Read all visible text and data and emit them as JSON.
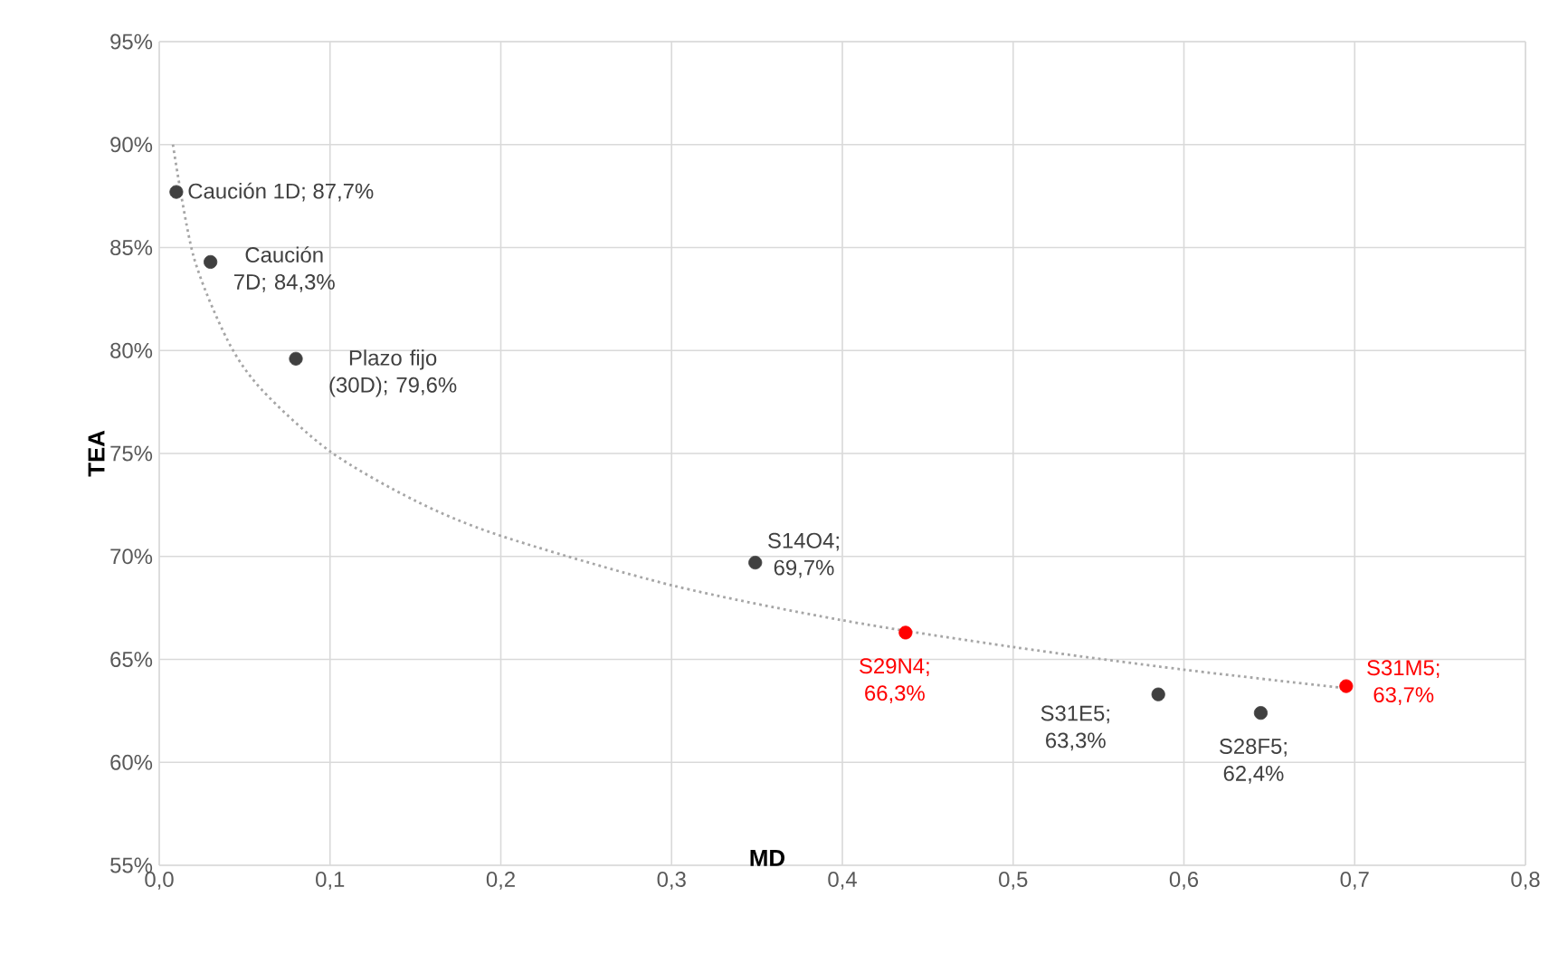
{
  "chart_data": {
    "type": "scatter",
    "xlabel": "MD",
    "ylabel": "TEA",
    "xlim": [
      0,
      0.8
    ],
    "ylim": [
      55,
      95
    ],
    "xticks": [
      {
        "value": 0,
        "label": "0,0"
      },
      {
        "value": 0.1,
        "label": "0,1"
      },
      {
        "value": 0.2,
        "label": "0,2"
      },
      {
        "value": 0.3,
        "label": "0,3"
      },
      {
        "value": 0.4,
        "label": "0,4"
      },
      {
        "value": 0.5,
        "label": "0,5"
      },
      {
        "value": 0.6,
        "label": "0,6"
      },
      {
        "value": 0.7,
        "label": "0,7"
      },
      {
        "value": 0.8,
        "label": "0,8"
      }
    ],
    "yticks": [
      {
        "value": 55,
        "label": "55%"
      },
      {
        "value": 60,
        "label": "60%"
      },
      {
        "value": 65,
        "label": "65%"
      },
      {
        "value": 70,
        "label": "70%"
      },
      {
        "value": 75,
        "label": "75%"
      },
      {
        "value": 80,
        "label": "80%"
      },
      {
        "value": 85,
        "label": "85%"
      },
      {
        "value": 90,
        "label": "90%"
      },
      {
        "value": 95,
        "label": "95%"
      }
    ],
    "grid": true,
    "marker": "circle",
    "series": [
      {
        "color": "#404040",
        "x": [
          0.01,
          0.03,
          0.08,
          0.349,
          0.585,
          0.645
        ],
        "values": [
          87.7,
          84.3,
          79.6,
          69.7,
          63.3,
          62.4
        ]
      },
      {
        "color": "#ff0000",
        "x": [
          0.437,
          0.695
        ],
        "values": [
          66.3,
          63.7
        ]
      },
      {
        "type": "line",
        "line_style": "dotted",
        "marker": "none",
        "color": "#a6a6a6",
        "x": [
          0.008,
          0.02,
          0.04,
          0.06,
          0.1,
          0.15,
          0.2,
          0.3,
          0.4,
          0.5,
          0.6,
          0.695
        ],
        "values": [
          90,
          84.6,
          80.5,
          78.1,
          75.1,
          72.7,
          71.0,
          68.6,
          66.9,
          65.6,
          64.5,
          63.6
        ]
      }
    ],
    "annotations": [
      {
        "text": "Caución 1D; 87,7%",
        "x": 0.01,
        "y": 87.7
      },
      {
        "text": "Caución 7D; 84,3%",
        "x": 0.03,
        "y": 84.3
      },
      {
        "text": "Plazo fijo (30D); 79,6%",
        "x": 0.08,
        "y": 79.6
      },
      {
        "text": "S14O4; 69,7%",
        "x": 0.349,
        "y": 69.7
      },
      {
        "text": "S29N4; 66,3%",
        "x": 0.437,
        "y": 66.3
      },
      {
        "text": "S31E5; 63,3%",
        "x": 0.585,
        "y": 63.3
      },
      {
        "text": "S28F5; 62,4%",
        "x": 0.645,
        "y": 62.4
      },
      {
        "text": "S31M5; 63,7%",
        "x": 0.695,
        "y": 63.7
      }
    ]
  }
}
